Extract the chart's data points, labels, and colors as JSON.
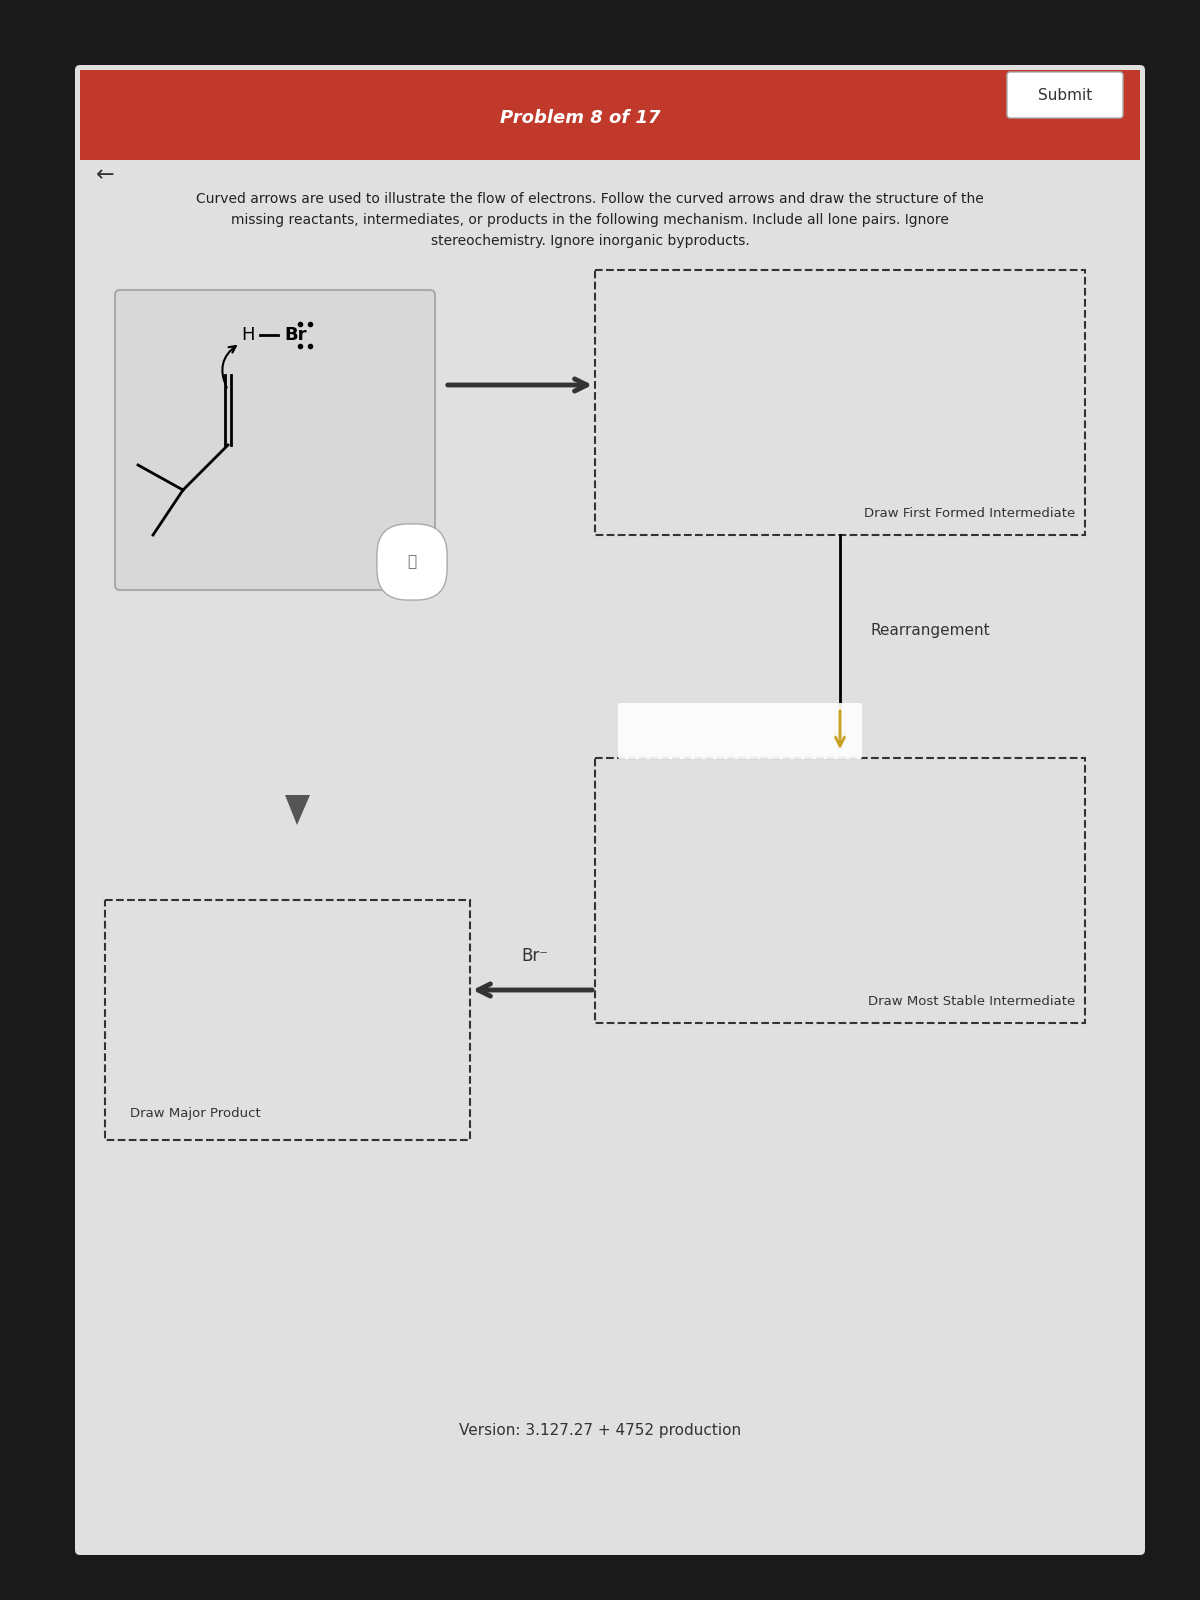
{
  "tablet_bg": "#1a1a1a",
  "page_bg": "#e0e0e0",
  "red_header_color": "#c0392b",
  "header_text": "Problem 8 of 17",
  "submit_text": "Submit",
  "instruction_text": "Curved arrows are used to illustrate the flow of electrons. Follow the curved arrows and draw the structure of the\nmissing reactants, intermediates, or products in the following mechanism. Include all lone pairs. Ignore\nstereochemistry. Ignore inorganic byproducts.",
  "back_arrow": "←",
  "box1_label": "Draw First Formed Intermediate",
  "box2_label": "Draw Most Stable Intermediate",
  "box3_label": "Draw Major Product",
  "rearrangement_label": "Rearrangement",
  "br_minus_label": "Br⁻",
  "version_text": "Version: 3.127.27 + 4752 production",
  "dashed_box_color": "#333333",
  "arrow_color": "#333333"
}
